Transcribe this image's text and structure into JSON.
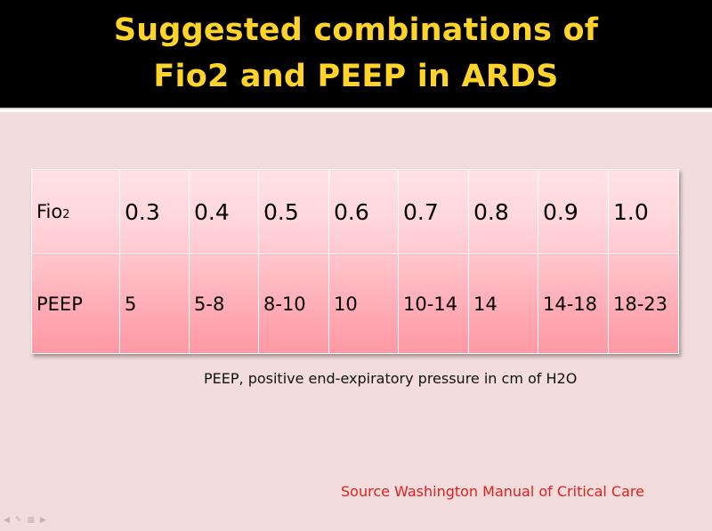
{
  "title": {
    "line1": "Suggested combinations of",
    "line2": "Fio2 and PEEP in ARDS"
  },
  "table": {
    "fio2": {
      "label_main": "Fio",
      "label_sub": "2",
      "values": [
        "0.3",
        "0.4",
        "0.5",
        "0.6",
        "0.7",
        "0.8",
        "0.9",
        "1.0"
      ]
    },
    "peep": {
      "label": "PEEP",
      "values": [
        "5",
        "5-8",
        "8-10",
        "10",
        "10-14",
        "14",
        "14-18",
        "18-23"
      ]
    }
  },
  "note": "PEEP, positive end-expiratory pressure in cm of H2O",
  "source": "Source Washington Manual of Critical Care",
  "colors": {
    "title": "#ffd42a",
    "header_bg": "#000000",
    "slide_bg": "#f2dcdc",
    "source_text": "#e02020"
  },
  "nav_icons": [
    "prev-icon",
    "pen-icon",
    "slides-icon",
    "next-icon"
  ]
}
